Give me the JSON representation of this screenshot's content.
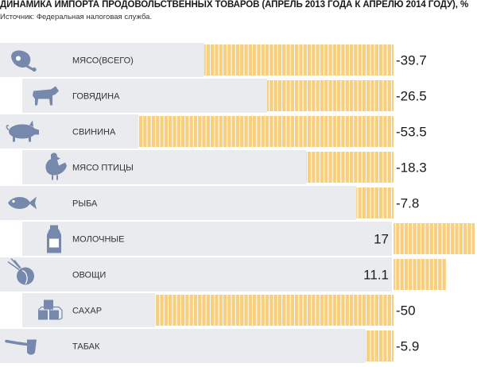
{
  "title": "ДИНАМИКА ИМПОРТА ПРОДОВОЛЬСТВЕННЫХ ТОВАРОВ (АПРЕЛЬ 2013 ГОДА К АПРЕЛЮ 2014 ГОДУ), %",
  "source": "Источник: Федеральная налоговая служба.",
  "chart_data": {
    "type": "bar",
    "orientation": "horizontal-diverging",
    "title": "ДИНАМИКА ИМПОРТА ПРОДОВОЛЬСТВЕННЫХ ТОВАРОВ (АПРЕЛЬ 2013 ГОДА К АПРЕЛЮ 2014 ГОДУ), %",
    "categories": [
      "МЯСО(ВСЕГО)",
      "ГОВЯДИНА",
      "СВИНИНА",
      "МЯСО ПТИЦЫ",
      "РЫБА",
      "МОЛОЧНЫЕ",
      "ОВОЩИ",
      "САХАР",
      "ТАБАК"
    ],
    "values": [
      -39.7,
      -26.5,
      -53.5,
      -18.3,
      -7.8,
      17,
      11.1,
      -50,
      -5.9
    ],
    "value_labels": [
      "-39.7",
      "-26.5",
      "-53.5",
      "-18.3",
      "-7.8",
      "17",
      "11.1",
      "-50",
      "-5.9"
    ],
    "icons": [
      "ham-icon",
      "cow-icon",
      "pig-icon",
      "chicken-icon",
      "fish-icon",
      "milk-carton-icon",
      "onion-icon",
      "sugar-cubes-icon",
      "pipe-icon"
    ],
    "xlabel": "",
    "ylabel": "%",
    "grid": false,
    "legend": "none",
    "colors": {
      "bar": "#f8cf7e",
      "bar_stripe": "#ffffff",
      "row_bg": "#e9ebef",
      "icon": "#7689ad"
    }
  }
}
